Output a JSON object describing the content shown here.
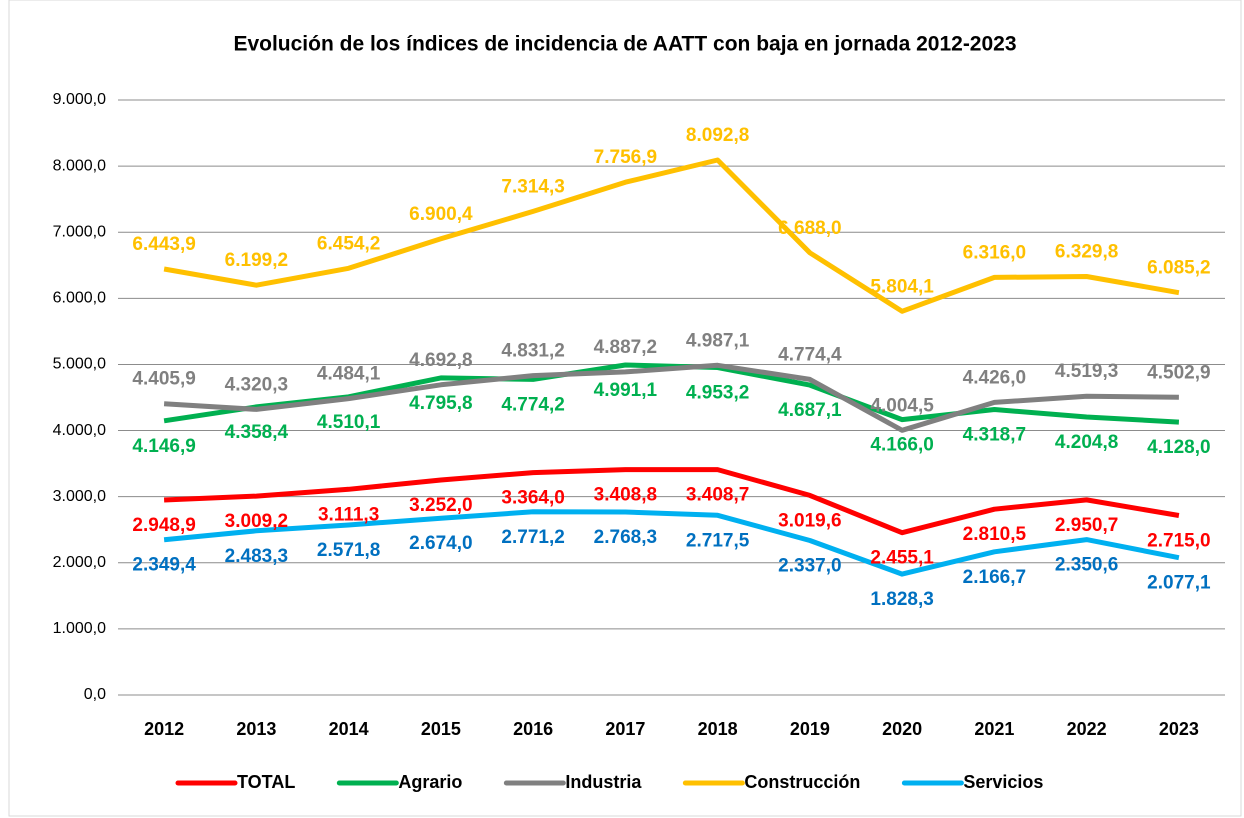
{
  "chart_data": {
    "type": "line",
    "title": "Evolución de los índices de incidencia de AATT con baja en jornada 2012-2023",
    "categories": [
      "2012",
      "2013",
      "2014",
      "2015",
      "2016",
      "2017",
      "2018",
      "2019",
      "2020",
      "2021",
      "2022",
      "2023"
    ],
    "series": [
      {
        "name": "TOTAL",
        "color": "#ff0000",
        "label_color": "#ff0000",
        "values": [
          2948.9,
          3009.2,
          3111.3,
          3252.0,
          3364.0,
          3408.8,
          3408.7,
          3019.6,
          2455.1,
          2810.5,
          2950.7,
          2715.0
        ],
        "value_labels": [
          "2.948,9",
          "3.009,2",
          "3.111,3",
          "3.252,0",
          "3.364,0",
          "3.408,8",
          "3.408,7",
          "3.019,6",
          "2.455,1",
          "2.810,5",
          "2.950,7",
          "2.715,0"
        ]
      },
      {
        "name": "Agrario",
        "color": "#00b050",
        "label_color": "#00b050",
        "values": [
          4146.9,
          4358.4,
          4510.1,
          4795.8,
          4774.2,
          4991.1,
          4953.2,
          4687.1,
          4166.0,
          4318.7,
          4204.8,
          4128.0
        ],
        "value_labels": [
          "4.146,9",
          "4.358,4",
          "4.510,1",
          "4.795,8",
          "4.774,2",
          "4.991,1",
          "4.953,2",
          "4.687,1",
          "4.166,0",
          "4.318,7",
          "4.204,8",
          "4.128,0"
        ]
      },
      {
        "name": "Industria",
        "color": "#808080",
        "label_color": "#808080",
        "values": [
          4405.9,
          4320.3,
          4484.1,
          4692.8,
          4831.2,
          4887.2,
          4987.1,
          4774.4,
          4004.5,
          4426.0,
          4519.3,
          4502.9
        ],
        "value_labels": [
          "4.405,9",
          "4.320,3",
          "4.484,1",
          "4.692,8",
          "4.831,2",
          "4.887,2",
          "4.987,1",
          "4.774,4",
          "4.004,5",
          "4.426,0",
          "4.519,3",
          "4.502,9"
        ]
      },
      {
        "name": "Construcción",
        "color": "#ffc000",
        "label_color": "#ffc000",
        "values": [
          6443.9,
          6199.2,
          6454.2,
          6900.4,
          7314.3,
          7756.9,
          8092.8,
          6688.0,
          5804.1,
          6316.0,
          6329.8,
          6085.2
        ],
        "value_labels": [
          "6.443,9",
          "6.199,2",
          "6.454,2",
          "6.900,4",
          "7.314,3",
          "7.756,9",
          "8.092,8",
          "6.688,0",
          "5.804,1",
          "6.316,0",
          "6.329,8",
          "6.085,2"
        ]
      },
      {
        "name": "Servicios",
        "color": "#00b0f0",
        "label_color": "#0070c0",
        "values": [
          2349.4,
          2483.3,
          2571.8,
          2674.0,
          2771.2,
          2768.3,
          2717.5,
          2337.0,
          1828.3,
          2166.7,
          2350.6,
          2077.1
        ],
        "value_labels": [
          "2.349,4",
          "2.483,3",
          "2.571,8",
          "2.674,0",
          "2.771,2",
          "2.768,3",
          "2.717,5",
          "2.337,0",
          "1.828,3",
          "2.166,7",
          "2.350,6",
          "2.077,1"
        ]
      }
    ],
    "ylim": [
      0,
      9000
    ],
    "yticks": [
      {
        "value": 0,
        "label": "0,0"
      },
      {
        "value": 1000,
        "label": "1.000,0"
      },
      {
        "value": 2000,
        "label": "2.000,0"
      },
      {
        "value": 3000,
        "label": "3.000,0"
      },
      {
        "value": 4000,
        "label": "4.000,0"
      },
      {
        "value": 5000,
        "label": "5.000,0"
      },
      {
        "value": 6000,
        "label": "6.000,0"
      },
      {
        "value": 7000,
        "label": "7.000,0"
      },
      {
        "value": 8000,
        "label": "8.000,0"
      },
      {
        "value": 9000,
        "label": "9.000,0"
      }
    ],
    "grid": true,
    "legend": "bottom"
  }
}
